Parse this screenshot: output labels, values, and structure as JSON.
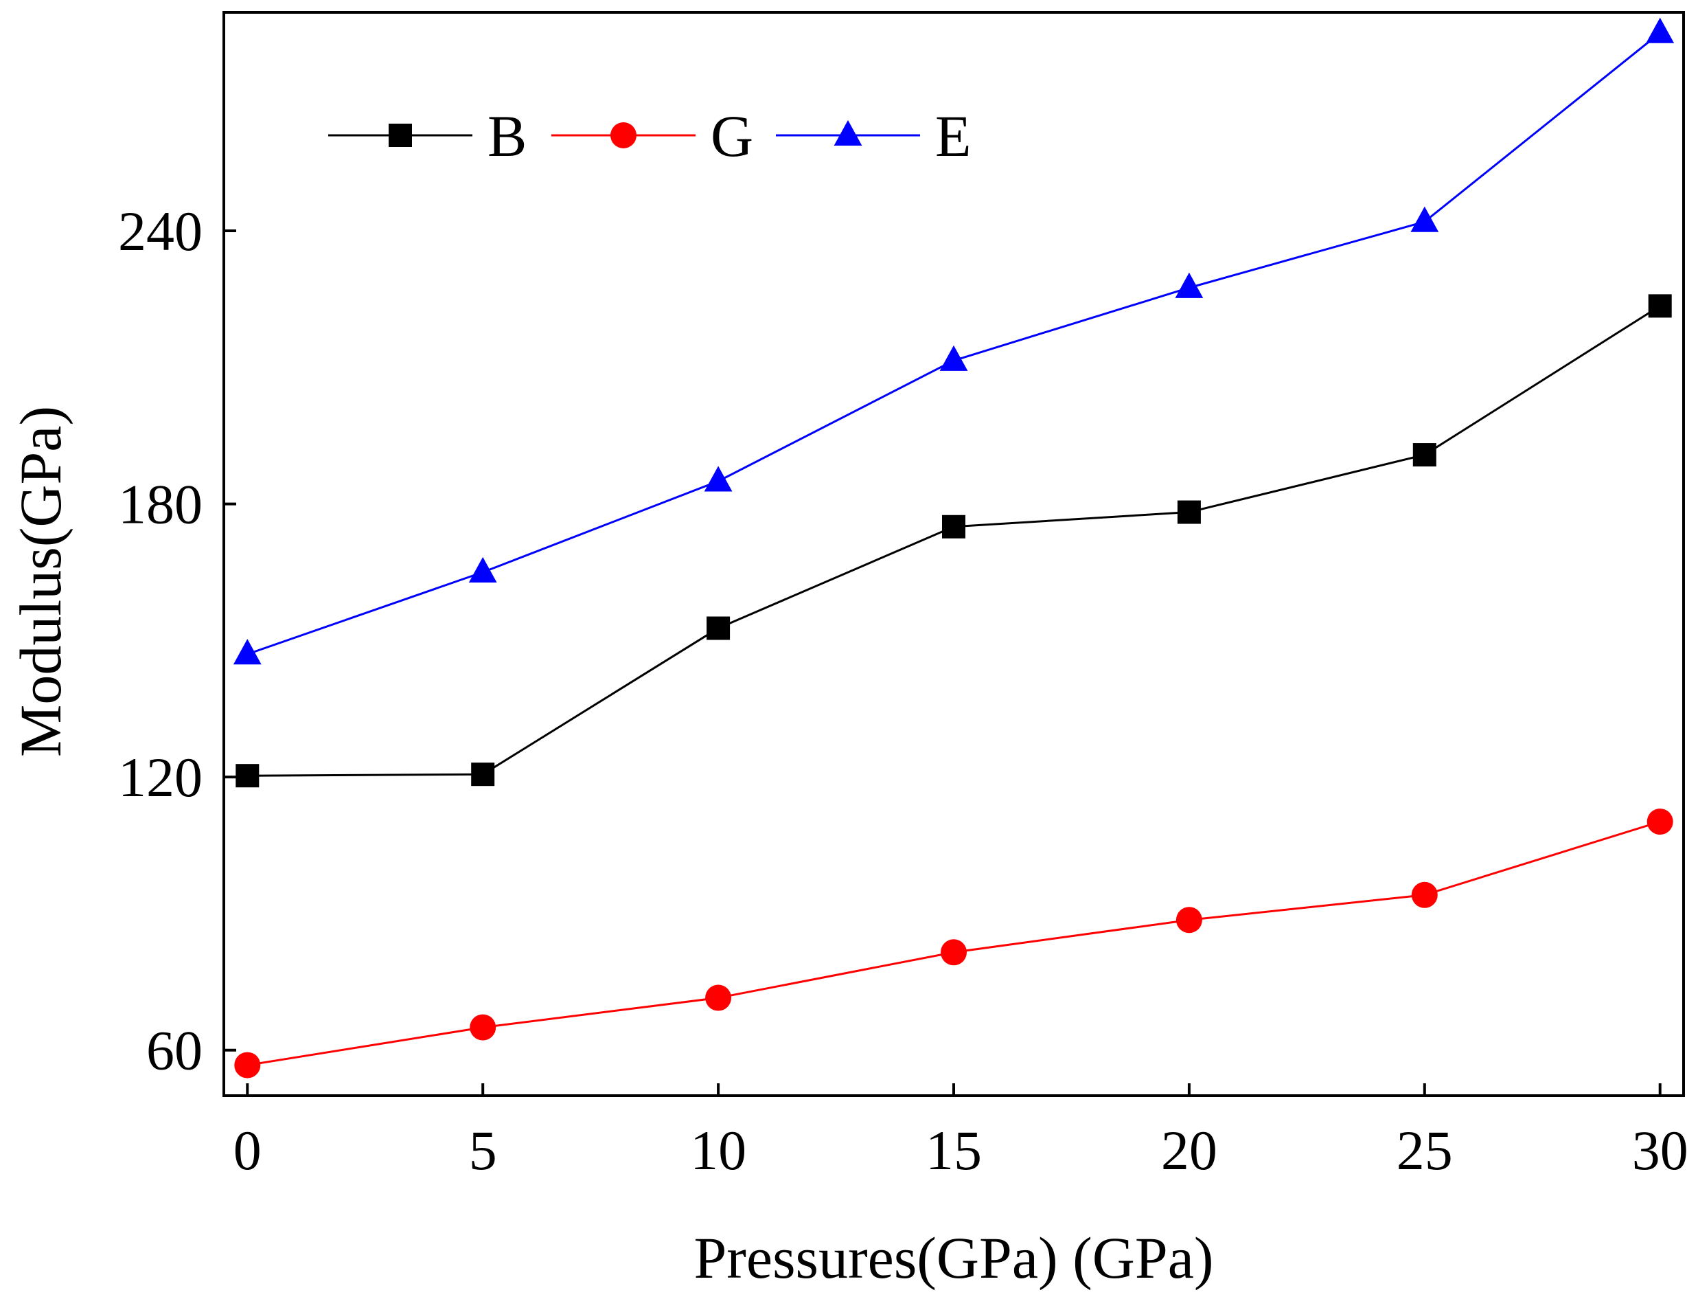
{
  "chart_data": {
    "type": "line",
    "title": "",
    "xlabel": "Pressures(GPa) (GPa)",
    "ylabel": "Modulus(GPa)",
    "x": [
      0,
      5,
      10,
      15,
      20,
      25,
      30
    ],
    "xlim": [
      -0.5,
      30.5
    ],
    "ylim": [
      50,
      288
    ],
    "xticks": [
      0,
      5,
      10,
      15,
      20,
      25,
      30
    ],
    "xtick_labels": [
      "0",
      "5",
      "10",
      "15",
      "20",
      "25",
      "30"
    ],
    "yticks": [
      60,
      120,
      180,
      240
    ],
    "ytick_labels": [
      "60",
      "120",
      "180",
      "240"
    ],
    "legend_position": "top-left",
    "grid": false,
    "series": [
      {
        "name": "B",
        "color": "#000000",
        "marker": "square",
        "values": [
          120.3,
          120.6,
          152.7,
          175.0,
          178.2,
          190.8,
          223.5
        ]
      },
      {
        "name": "G",
        "color": "#ff0000",
        "marker": "circle",
        "values": [
          56.7,
          65.0,
          71.5,
          81.5,
          88.6,
          94.1,
          110.2
        ]
      },
      {
        "name": "E",
        "color": "#0000ff",
        "marker": "triangle",
        "values": [
          147.0,
          165.0,
          185.0,
          211.5,
          227.5,
          242.0,
          283.5
        ]
      }
    ]
  }
}
